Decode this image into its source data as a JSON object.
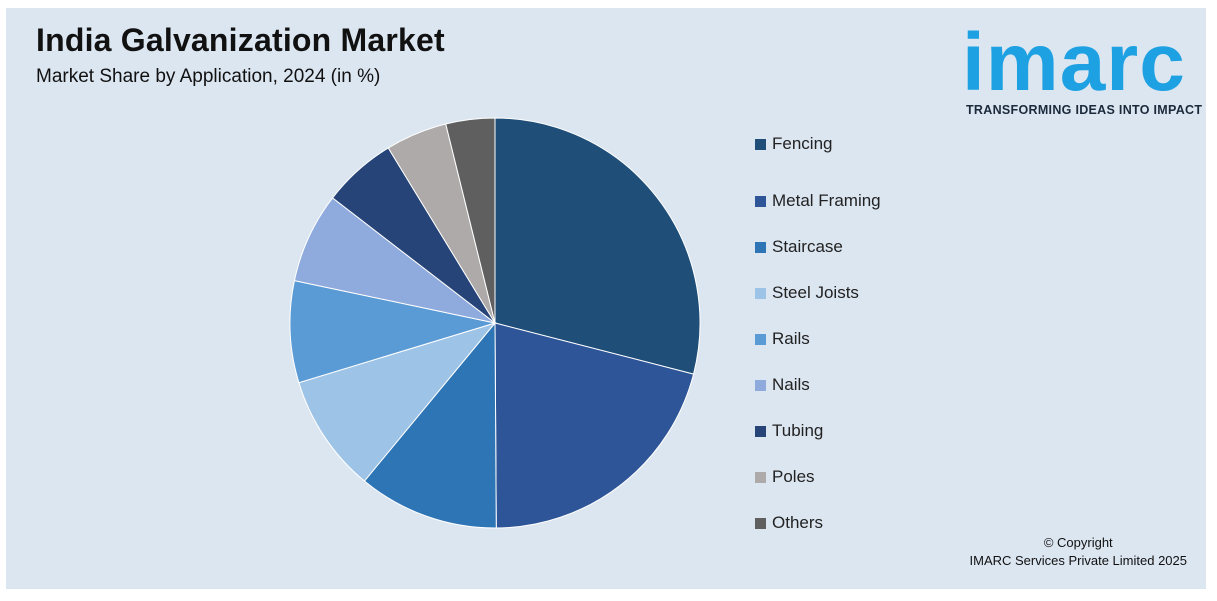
{
  "header": {
    "title": "India Galvanization Market",
    "subtitle": "Market Share by Application, 2024 (in %)"
  },
  "logo": {
    "word": "imarc",
    "tagline": "TRANSFORMING IDEAS INTO IMPACT",
    "color": "#1da1e2"
  },
  "chart_data": {
    "type": "pie",
    "title": "India Galvanization Market",
    "subtitle": "Market Share by Application, 2024 (in %)",
    "legend_position": "right",
    "start_angle": "12 o'clock, clockwise",
    "slices": [
      {
        "label": "Fencing",
        "value": 29.3,
        "color": "#1f4e79"
      },
      {
        "label": "Metal Framing",
        "value": 21.1,
        "color": "#2e5597"
      },
      {
        "label": "Staircase",
        "value": 11.2,
        "color": "#2e75b6"
      },
      {
        "label": "Steel Joists",
        "value": 9.4,
        "color": "#9dc3e6"
      },
      {
        "label": "Rails",
        "value": 8.1,
        "color": "#5b9bd5"
      },
      {
        "label": "Nails",
        "value": 7.2,
        "color": "#8faadc"
      },
      {
        "label": "Tubing",
        "value": 5.9,
        "color": "#264478"
      },
      {
        "label": "Poles",
        "value": 4.9,
        "color": "#aeaaaa"
      },
      {
        "label": "Others",
        "value": 3.9,
        "color": "#5f5f5f"
      }
    ]
  },
  "footer": {
    "copyright_line1": "© Copyright",
    "copyright_line2": "IMARC Services Private Limited 2025"
  },
  "colors": {
    "background": "#dce6f1",
    "title": "#111111"
  }
}
